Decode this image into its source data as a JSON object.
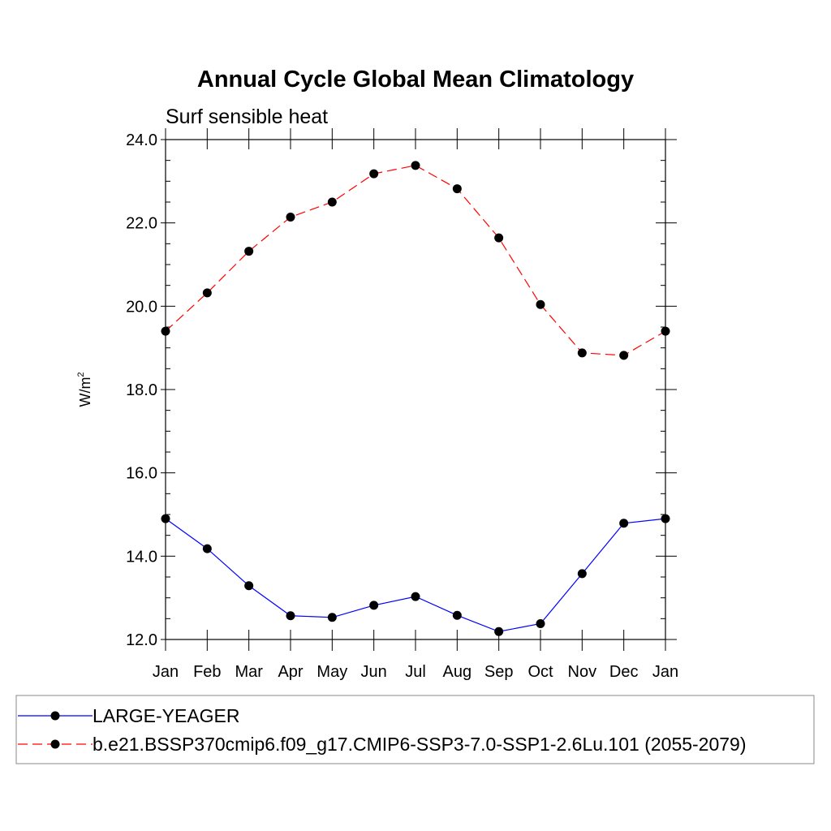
{
  "chart_data": {
    "type": "line",
    "title": "Annual Cycle Global Mean Climatology",
    "subtitle": "Surf sensible heat",
    "ylabel": "W/m",
    "ylabel_superscript": "2",
    "ylim": [
      12.0,
      24.0
    ],
    "y_ticks": [
      "12.0",
      "14.0",
      "16.0",
      "18.0",
      "20.0",
      "22.0",
      "24.0"
    ],
    "y_tick_values": [
      12,
      14,
      16,
      18,
      20,
      22,
      24
    ],
    "categories": [
      "Jan",
      "Feb",
      "Mar",
      "Apr",
      "May",
      "Jun",
      "Jul",
      "Aug",
      "Sep",
      "Oct",
      "Nov",
      "Dec",
      "Jan"
    ],
    "grid": false,
    "legend_placement": "bottom",
    "series": [
      {
        "name": "LARGE-YEAGER",
        "color": "#0000ff",
        "dash": "solid",
        "values": [
          14.9,
          14.18,
          13.29,
          12.57,
          12.53,
          12.82,
          13.03,
          12.58,
          12.19,
          12.38,
          13.58,
          14.79,
          14.9
        ]
      },
      {
        "name": "b.e21.BSSP370cmip6.f09_g17.CMIP6-SSP3-7.0-SSP1-2.6Lu.101 (2055-2079)",
        "color": "#ff0000",
        "dash": "dashed",
        "values": [
          19.4,
          20.32,
          21.32,
          22.14,
          22.5,
          23.18,
          23.38,
          22.82,
          21.64,
          20.04,
          18.88,
          18.82,
          19.4
        ]
      }
    ]
  }
}
